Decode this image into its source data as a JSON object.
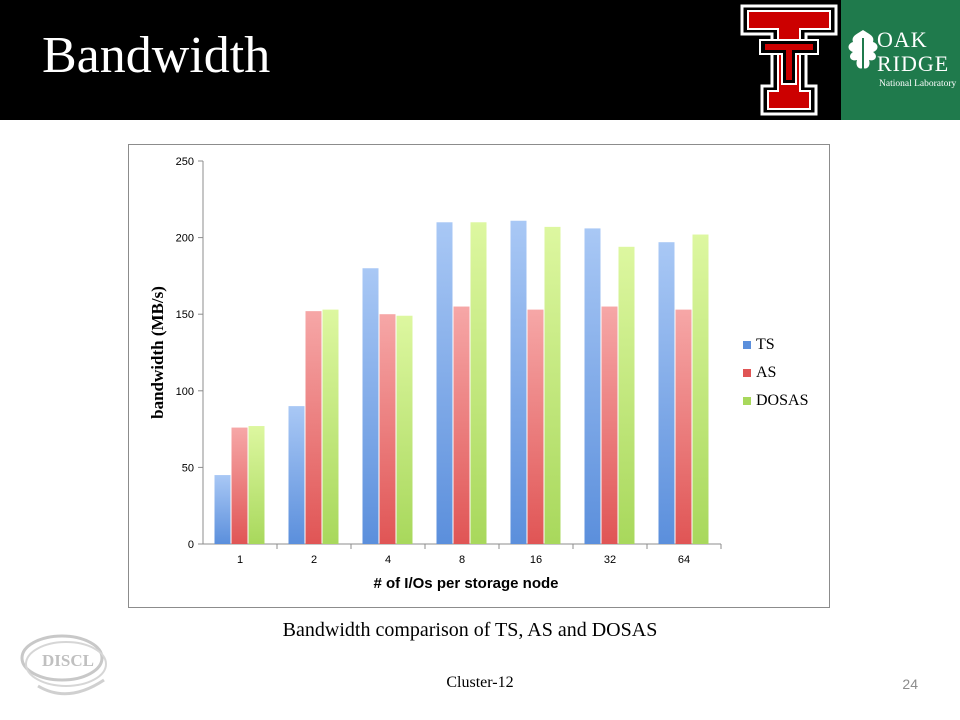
{
  "slide": {
    "title": "Bandwidth",
    "caption": "Bandwidth comparison of TS, AS and DOSAS",
    "footer": "Cluster-12",
    "page_number": "24"
  },
  "logos": {
    "ornl": {
      "oak": "OAK",
      "ridge": "RIDGE",
      "lab": "National Laboratory",
      "color": "#1f7a4c"
    },
    "texas_tech": {
      "color": "#cc0000"
    },
    "discl": {
      "text": "DISCL"
    }
  },
  "chart_data": {
    "type": "bar",
    "categories": [
      "1",
      "2",
      "4",
      "8",
      "16",
      "32",
      "64"
    ],
    "series": [
      {
        "name": "TS",
        "color": "#5b8fdc",
        "values": [
          45,
          90,
          180,
          210,
          211,
          206,
          197
        ]
      },
      {
        "name": "AS",
        "color": "#e05555",
        "values": [
          76,
          152,
          150,
          155,
          153,
          155,
          153
        ]
      },
      {
        "name": "DOSAS",
        "color": "#a8d85c",
        "values": [
          77,
          153,
          149,
          210,
          207,
          194,
          202
        ]
      }
    ],
    "xlabel": "# of I/Os per storage node",
    "ylabel": "bandwidth (MB/s)",
    "ylim": [
      0,
      250
    ],
    "yticks": [
      0,
      50,
      100,
      150,
      200,
      250
    ],
    "grid": false,
    "legend": "right"
  }
}
